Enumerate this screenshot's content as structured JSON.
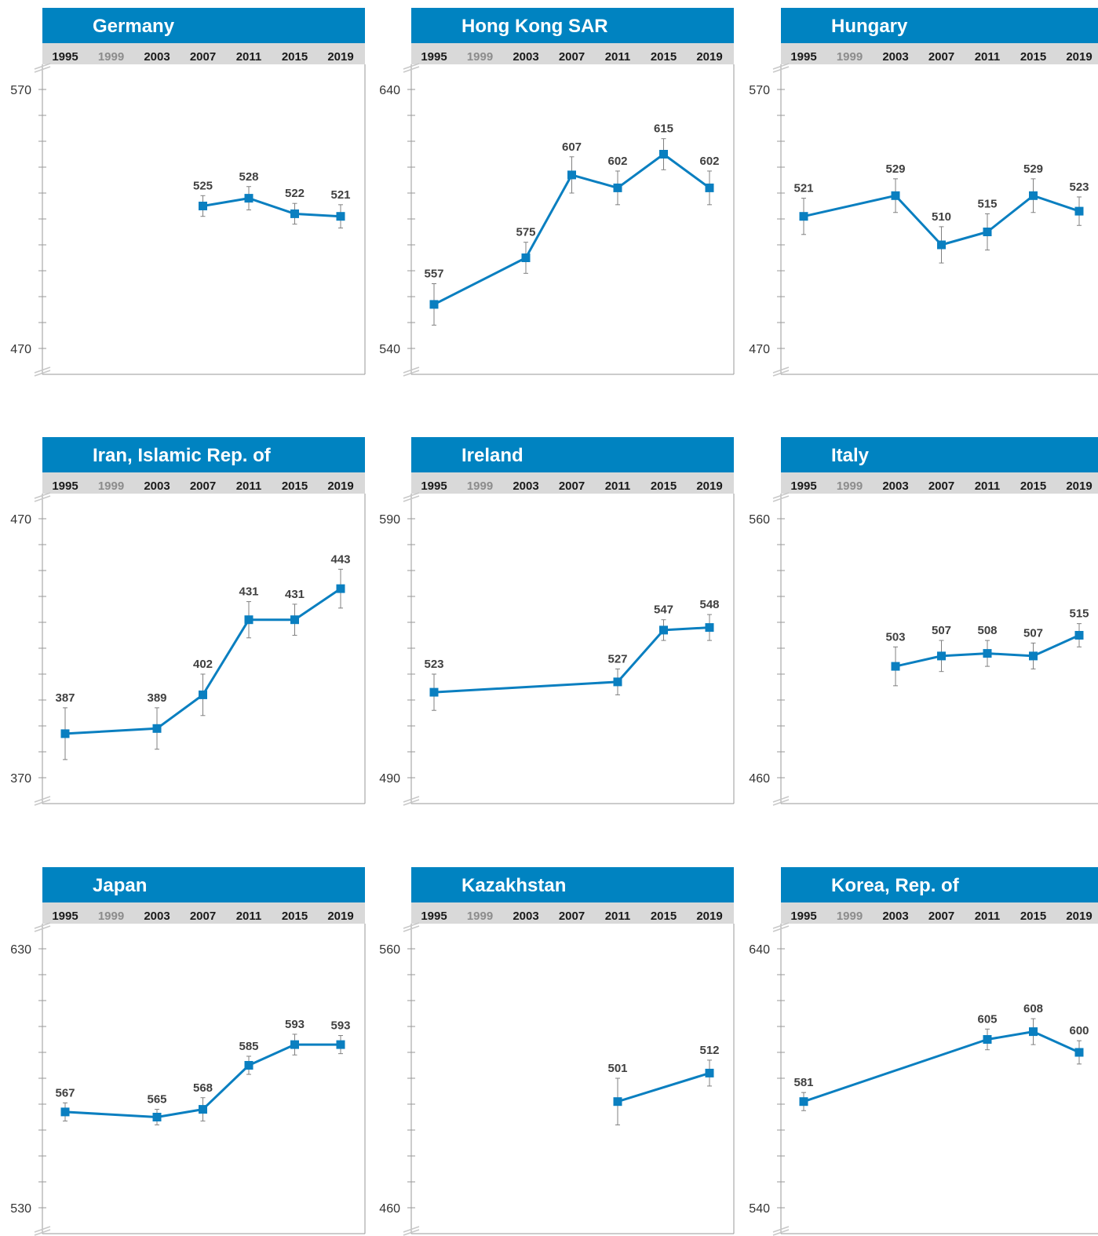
{
  "colors": {
    "header_bg": "#0083c1",
    "header_text": "#ffffff",
    "years_band": "#d9d9d9",
    "line": "#0a7fc0",
    "marker": "#0a7fc0",
    "label": "#404040",
    "axis": "#999999",
    "muted_year": "#8c8c8c"
  },
  "years": [
    "1995",
    "1999",
    "2003",
    "2007",
    "2011",
    "2015",
    "2019"
  ],
  "muted_years": [
    "1999"
  ],
  "chart_data": [
    {
      "type": "line",
      "title": "Germany",
      "ylim": [
        470,
        570
      ],
      "yticks": [
        "470",
        "570"
      ],
      "x": [
        "2007",
        "2011",
        "2015",
        "2019"
      ],
      "values": [
        525,
        528,
        522,
        521
      ],
      "labels": [
        "525",
        "528",
        "522",
        "521"
      ],
      "error": [
        4,
        4.5,
        4,
        4.5
      ]
    },
    {
      "type": "line",
      "title": "Hong Kong SAR",
      "ylim": [
        540,
        640
      ],
      "yticks": [
        "540",
        "640"
      ],
      "x": [
        "1995",
        "2003",
        "2007",
        "2011",
        "2015",
        "2019"
      ],
      "values": [
        557,
        575,
        607,
        602,
        615,
        602
      ],
      "labels": [
        "557",
        "575",
        "607",
        "602",
        "615",
        "602"
      ],
      "error": [
        8,
        6,
        7,
        6.5,
        6,
        6.5
      ]
    },
    {
      "type": "line",
      "title": "Hungary",
      "ylim": [
        470,
        570
      ],
      "yticks": [
        "470",
        "570"
      ],
      "x": [
        "1995",
        "2003",
        "2007",
        "2011",
        "2015",
        "2019"
      ],
      "values": [
        521,
        529,
        510,
        515,
        529,
        523
      ],
      "labels": [
        "521",
        "529",
        "510",
        "515",
        "529",
        "523"
      ],
      "error": [
        7,
        6.5,
        7,
        7,
        6.5,
        5.5
      ]
    },
    {
      "type": "line",
      "title": "Iran, Islamic Rep. of",
      "ylim": [
        370,
        470
      ],
      "yticks": [
        "370",
        "470"
      ],
      "x": [
        "1995",
        "2003",
        "2007",
        "2011",
        "2015",
        "2019"
      ],
      "values": [
        387,
        389,
        402,
        431,
        431,
        443
      ],
      "labels": [
        "387",
        "389",
        "402",
        "431",
        "431",
        "443"
      ],
      "error": [
        10,
        8,
        8,
        7,
        6,
        7.5
      ]
    },
    {
      "type": "line",
      "title": "Ireland",
      "ylim": [
        490,
        590
      ],
      "yticks": [
        "490",
        "590"
      ],
      "x": [
        "1995",
        "2011",
        "2015",
        "2019"
      ],
      "values": [
        523,
        527,
        547,
        548
      ],
      "labels": [
        "523",
        "527",
        "547",
        "548"
      ],
      "error": [
        7,
        5,
        4,
        5
      ]
    },
    {
      "type": "line",
      "title": "Italy",
      "ylim": [
        460,
        560
      ],
      "yticks": [
        "460",
        "560"
      ],
      "x": [
        "2003",
        "2007",
        "2011",
        "2015",
        "2019"
      ],
      "values": [
        503,
        507,
        508,
        507,
        515
      ],
      "labels": [
        "503",
        "507",
        "508",
        "507",
        "515"
      ],
      "error": [
        7.5,
        6,
        5,
        5,
        4.5
      ]
    },
    {
      "type": "line",
      "title": "Japan",
      "ylim": [
        530,
        630
      ],
      "yticks": [
        "530",
        "630"
      ],
      "x": [
        "1995",
        "2003",
        "2007",
        "2011",
        "2015",
        "2019"
      ],
      "values": [
        567,
        565,
        568,
        585,
        593,
        593
      ],
      "labels": [
        "567",
        "565",
        "568",
        "585",
        "593",
        "593"
      ],
      "error": [
        3.5,
        3,
        4.5,
        3.5,
        4,
        3.5
      ]
    },
    {
      "type": "line",
      "title": "Kazakhstan",
      "ylim": [
        460,
        560
      ],
      "yticks": [
        "460",
        "560"
      ],
      "x": [
        "2011",
        "2019"
      ],
      "values": [
        501,
        512
      ],
      "labels": [
        "501",
        "512"
      ],
      "error": [
        9,
        5
      ]
    },
    {
      "type": "line",
      "title": "Korea, Rep. of",
      "ylim": [
        540,
        640
      ],
      "yticks": [
        "540",
        "640"
      ],
      "x": [
        "1995",
        "2011",
        "2015",
        "2019"
      ],
      "values": [
        581,
        605,
        608,
        600
      ],
      "labels": [
        "581",
        "605",
        "608",
        "600"
      ],
      "error": [
        3.5,
        4,
        5,
        4.5
      ]
    }
  ]
}
